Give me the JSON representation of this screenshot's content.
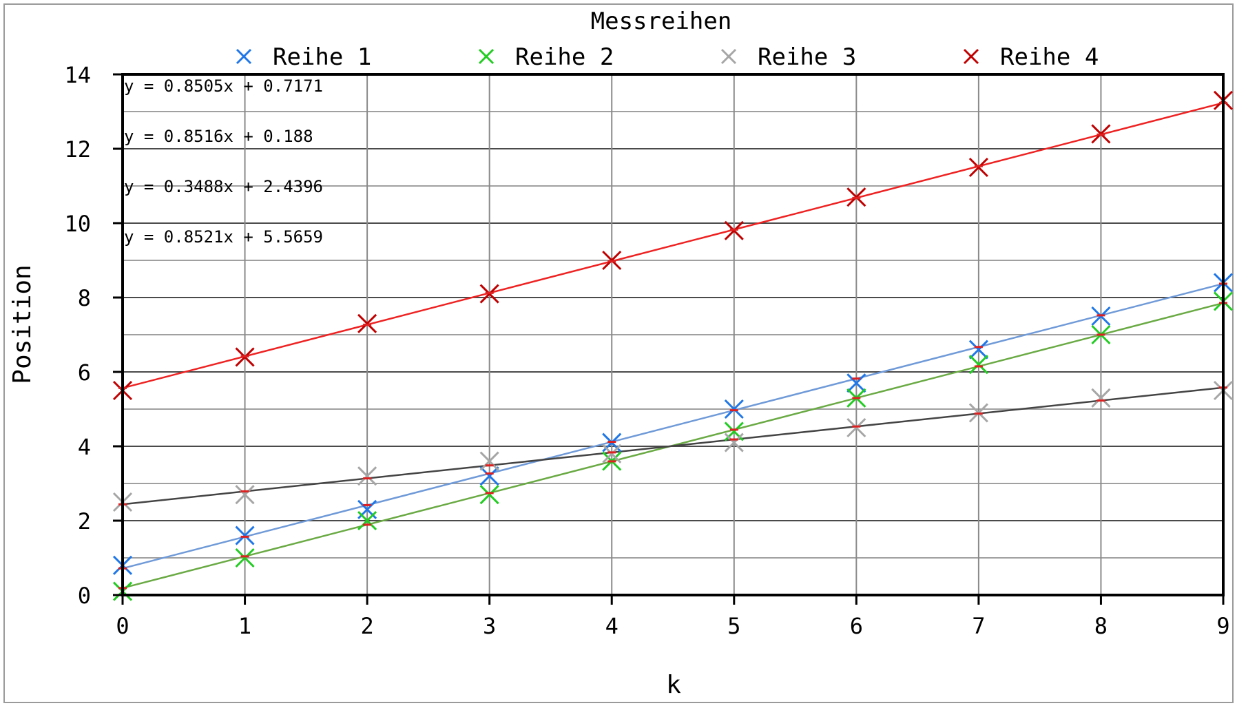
{
  "chart_data": {
    "type": "scatter",
    "title": "Messreihen",
    "xlabel": "k",
    "ylabel": "Position",
    "x": [
      0,
      1,
      2,
      3,
      4,
      5,
      6,
      7,
      8,
      9
    ],
    "xlim": [
      0,
      9
    ],
    "ylim": [
      0,
      14
    ],
    "x_ticks": [
      0,
      1,
      2,
      3,
      4,
      5,
      6,
      7,
      8,
      9
    ],
    "y_ticks": [
      0,
      2,
      4,
      6,
      8,
      10,
      12,
      14
    ],
    "grid": true,
    "legend_position": "top",
    "series": [
      {
        "name": "Reihe 1",
        "color": "#1f77e8",
        "trend_color": "#6f9ad8",
        "values": [
          0.8,
          1.6,
          2.3,
          3.2,
          4.1,
          5.0,
          5.7,
          6.6,
          7.5,
          8.4
        ],
        "trendline": {
          "slope": 0.8505,
          "intercept": 0.7171,
          "equation": "y = 0.8505x + 0.7171"
        }
      },
      {
        "name": "Reihe 2",
        "color": "#22cc22",
        "trend_color": "#6aaa44",
        "values": [
          0.1,
          1.0,
          2.0,
          2.7,
          3.6,
          4.4,
          5.3,
          6.2,
          7.0,
          7.9
        ],
        "trendline": {
          "slope": 0.8516,
          "intercept": 0.188,
          "equation": "y = 0.8516x + 0.188"
        }
      },
      {
        "name": "Reihe 3",
        "color": "#a6a6a6",
        "trend_color": "#444444",
        "values": [
          2.5,
          2.7,
          3.2,
          3.6,
          3.8,
          4.1,
          4.5,
          4.9,
          5.3,
          5.5
        ],
        "trendline": {
          "slope": 0.3488,
          "intercept": 2.4396,
          "equation": "y = 0.3488x + 2.4396"
        }
      },
      {
        "name": "Reihe 4",
        "color": "#c00000",
        "trend_color": "#ee2222",
        "values": [
          5.5,
          6.4,
          7.3,
          8.1,
          9.0,
          9.8,
          10.7,
          11.5,
          12.4,
          13.3
        ],
        "trendline": {
          "slope": 0.8521,
          "intercept": 5.5659,
          "equation": "y = 0.8521x + 5.5659"
        }
      }
    ]
  }
}
